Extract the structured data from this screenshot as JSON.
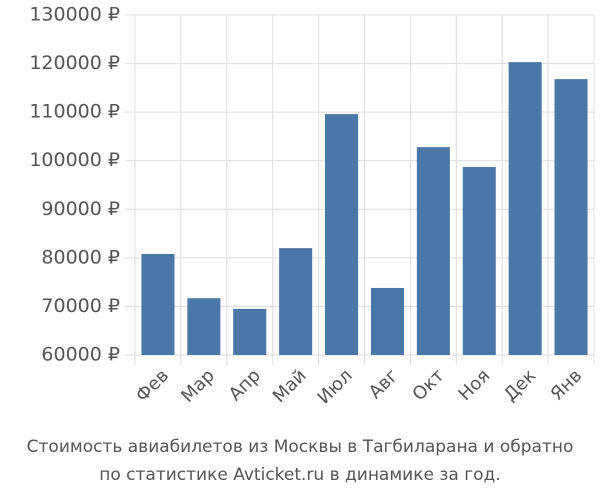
{
  "chart_data": {
    "type": "bar",
    "title": "Стоимость авиабилетов из Москвы в Тагбиларана и обратно",
    "subtitle": "по статистике Avticket.ru в динамике за год.",
    "categories": [
      "Фев",
      "Мар",
      "Апр",
      "Май",
      "Июл",
      "Авг",
      "Окт",
      "Ноя",
      "Дек",
      "Янв"
    ],
    "values": [
      80800,
      71700,
      69500,
      82000,
      109600,
      73800,
      102800,
      98700,
      120300,
      116800
    ],
    "color": "#4a76a8",
    "ylim": [
      60000,
      130000
    ],
    "yticks": [
      {
        "value": 60000,
        "label": "60000 ₽"
      },
      {
        "value": 70000,
        "label": "70000 ₽"
      },
      {
        "value": 80000,
        "label": "80000 ₽"
      },
      {
        "value": 90000,
        "label": "90000 ₽"
      },
      {
        "value": 100000,
        "label": "100000 ₽"
      },
      {
        "value": 110000,
        "label": "110000 ₽"
      },
      {
        "value": 120000,
        "label": "120000 ₽"
      },
      {
        "value": 130000,
        "label": "130000 ₽"
      }
    ],
    "grid": true
  }
}
